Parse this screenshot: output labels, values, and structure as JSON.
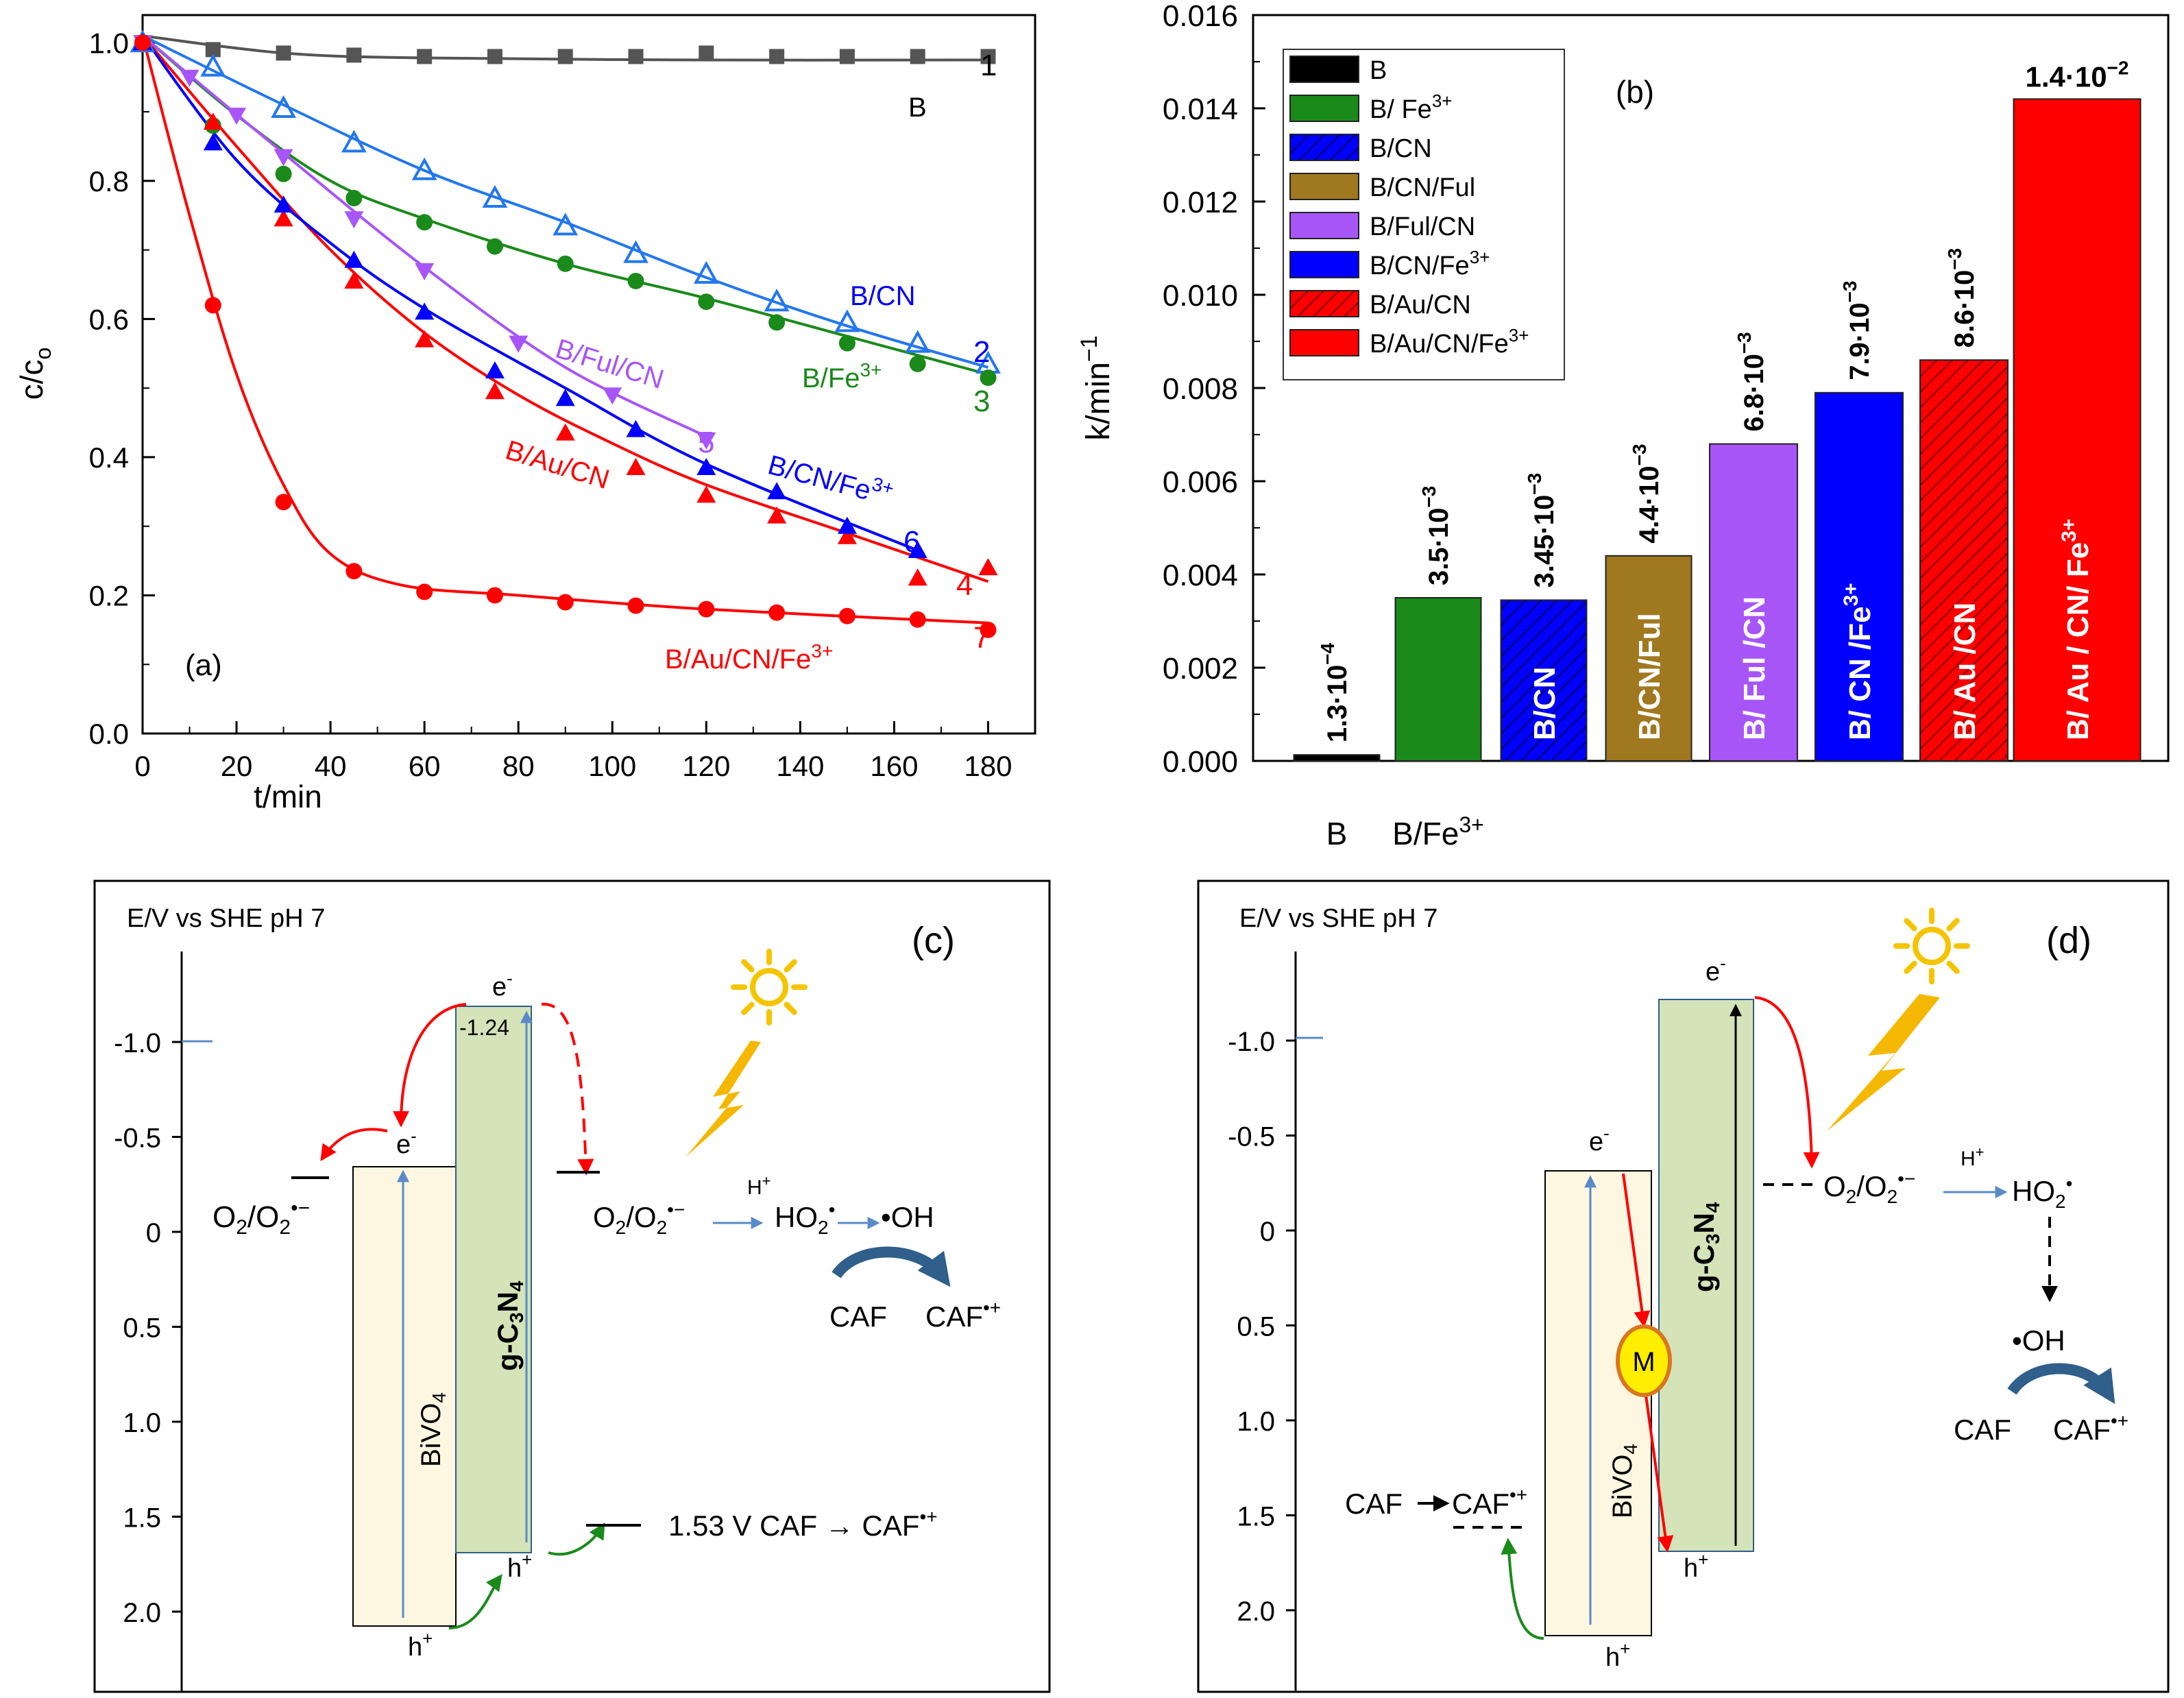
{
  "colors": {
    "black": "#000000",
    "gray": "#555555",
    "red": "#ff0000",
    "green": "#1a8a1a",
    "blue": "#0000ff",
    "lightblue": "#2277ee",
    "purple": "#a855f7",
    "brown": "#a07820",
    "bivo4_fill": "#fdf6e0",
    "gcn_fill": "#d4e3b8",
    "sun": "#f5c400",
    "bolt": "#f5b800",
    "m_fill": "#ffee00",
    "m_ring": "#d9761f",
    "arc": "#2f5f8a",
    "box_line": "#2f5f8a"
  },
  "chart_data": [
    {
      "id": "a",
      "type": "scatter",
      "title": "(a)",
      "xlabel": "t/min",
      "ylabel": "c/co",
      "xlim": [
        0,
        190
      ],
      "ylim": [
        0,
        1.04
      ],
      "xticks": [
        "0",
        "20",
        "40",
        "60",
        "80",
        "100",
        "120",
        "140",
        "160",
        "180"
      ],
      "yticks": [
        "0.0",
        "0.2",
        "0.4",
        "0.6",
        "0.8",
        "1.0"
      ],
      "series": [
        {
          "name": "B",
          "num": "1",
          "color": "#555555",
          "marker": "square",
          "x": [
            0,
            15,
            30,
            45,
            60,
            75,
            90,
            105,
            120,
            135,
            150,
            165,
            180
          ],
          "y": [
            1.0,
            0.99,
            0.985,
            0.982,
            0.98,
            0.98,
            0.98,
            0.98,
            0.985,
            0.98,
            0.98,
            0.98,
            0.98
          ],
          "fit": [
            [
              0,
              1.01
            ],
            [
              30,
              0.985
            ],
            [
              60,
              0.978
            ],
            [
              120,
              0.975
            ],
            [
              180,
              0.975
            ]
          ]
        },
        {
          "name": "B/CN",
          "num": "2",
          "color": "#2277ee",
          "marker": "open-triangle",
          "x": [
            0,
            15,
            30,
            45,
            60,
            75,
            90,
            105,
            120,
            135,
            150,
            165,
            180
          ],
          "y": [
            1.0,
            0.965,
            0.905,
            0.855,
            0.815,
            0.775,
            0.735,
            0.695,
            0.665,
            0.625,
            0.595,
            0.565,
            0.535
          ],
          "fit": [
            [
              0,
              1.01
            ],
            [
              30,
              0.91
            ],
            [
              60,
              0.815
            ],
            [
              90,
              0.74
            ],
            [
              120,
              0.66
            ],
            [
              150,
              0.59
            ],
            [
              180,
              0.53
            ]
          ]
        },
        {
          "name": "B/Fe3+",
          "num": "3",
          "color": "#1a8a1a",
          "marker": "circle",
          "x": [
            0,
            15,
            30,
            45,
            60,
            75,
            90,
            105,
            120,
            135,
            150,
            165,
            180
          ],
          "y": [
            1.0,
            0.88,
            0.81,
            0.775,
            0.74,
            0.705,
            0.68,
            0.655,
            0.625,
            0.595,
            0.565,
            0.535,
            0.515
          ],
          "fit": [
            [
              0,
              1.01
            ],
            [
              20,
              0.895
            ],
            [
              40,
              0.8
            ],
            [
              60,
              0.745
            ],
            [
              90,
              0.68
            ],
            [
              120,
              0.63
            ],
            [
              150,
              0.575
            ],
            [
              180,
              0.52
            ]
          ]
        },
        {
          "name": "B/Au/CN",
          "num": "4",
          "color": "#ff0000",
          "marker": "triangle",
          "x": [
            0,
            15,
            30,
            45,
            60,
            75,
            90,
            105,
            120,
            135,
            150,
            165,
            180
          ],
          "y": [
            1.0,
            0.885,
            0.745,
            0.655,
            0.57,
            0.495,
            0.435,
            0.385,
            0.345,
            0.315,
            0.285,
            0.225,
            0.24
          ],
          "fit": [
            [
              0,
              1.01
            ],
            [
              20,
              0.85
            ],
            [
              40,
              0.7
            ],
            [
              60,
              0.58
            ],
            [
              80,
              0.49
            ],
            [
              100,
              0.42
            ],
            [
              120,
              0.36
            ],
            [
              150,
              0.29
            ],
            [
              180,
              0.22
            ]
          ]
        },
        {
          "name": "B/Ful/CN",
          "num": "5",
          "color": "#a855f7",
          "marker": "down-triangle",
          "x": [
            0,
            10,
            20,
            30,
            45,
            60,
            80,
            100,
            120
          ],
          "y": [
            1.0,
            0.95,
            0.895,
            0.835,
            0.745,
            0.67,
            0.565,
            0.49,
            0.425
          ],
          "fit": [
            [
              0,
              1.01
            ],
            [
              30,
              0.84
            ],
            [
              60,
              0.675
            ],
            [
              90,
              0.53
            ],
            [
              120,
              0.43
            ]
          ]
        },
        {
          "name": "B/CN/Fe3+",
          "num": "6",
          "color": "#0000ff",
          "marker": "triangle",
          "x": [
            0,
            15,
            30,
            45,
            60,
            75,
            90,
            105,
            120,
            135,
            150,
            165
          ],
          "y": [
            1.0,
            0.855,
            0.765,
            0.685,
            0.61,
            0.525,
            0.485,
            0.44,
            0.385,
            0.35,
            0.3,
            0.265
          ],
          "fit": [
            [
              0,
              1.01
            ],
            [
              20,
              0.83
            ],
            [
              40,
              0.71
            ],
            [
              60,
              0.615
            ],
            [
              90,
              0.5
            ],
            [
              120,
              0.39
            ],
            [
              165,
              0.265
            ]
          ]
        },
        {
          "name": "B/Au/CN/Fe3+",
          "num": "7",
          "color": "#ff0000",
          "marker": "circle",
          "x": [
            0,
            15,
            30,
            45,
            60,
            75,
            90,
            105,
            120,
            135,
            150,
            165,
            180
          ],
          "y": [
            1.0,
            0.62,
            0.335,
            0.235,
            0.205,
            0.2,
            0.19,
            0.185,
            0.18,
            0.175,
            0.17,
            0.165,
            0.15
          ],
          "fit": [
            [
              0,
              1.01
            ],
            [
              10,
              0.75
            ],
            [
              20,
              0.52
            ],
            [
              30,
              0.36
            ],
            [
              40,
              0.26
            ],
            [
              55,
              0.215
            ],
            [
              80,
              0.2
            ],
            [
              120,
              0.18
            ],
            [
              180,
              0.16
            ]
          ]
        }
      ],
      "labels": {
        "B": "B",
        "BCN": "B/CN",
        "BFe": "B/Fe",
        "BFe_sup": "3+",
        "BFulCN": "B/Ful/CN",
        "BAuCN": "B/Au/CN",
        "BCNFe": "B/CN/Fe",
        "BCNFe_sup": "3+",
        "BAuCNFe": "B/Au/CN/Fe",
        "BAuCNFe_sup": "3+",
        "panel": "(a)"
      }
    },
    {
      "id": "b",
      "type": "bar",
      "title": "(b)",
      "ylabel": "k/min",
      "ylabel_sup": "−1",
      "ylim": [
        0,
        0.016
      ],
      "yticks": [
        "0.000",
        "0.002",
        "0.004",
        "0.006",
        "0.008",
        "0.010",
        "0.012",
        "0.014",
        "0.016"
      ],
      "xcat_labels": [
        {
          "text": "B",
          "sup": ""
        },
        {
          "text": "B/Fe",
          "sup": "3+"
        }
      ],
      "bars": [
        {
          "name": "B",
          "value": 0.00013,
          "top_label": "1.3·10",
          "top_exp": "−4",
          "in_label": "",
          "color": "#000000",
          "hatch": false
        },
        {
          "name": "B/ Fe3+",
          "value": 0.0035,
          "top_label": "3.5·10",
          "top_exp": "−3",
          "in_label": "",
          "color": "#1a8a1a",
          "hatch": false
        },
        {
          "name": "B/CN",
          "value": 0.00345,
          "top_label": "3.45·10",
          "top_exp": "−3",
          "in_label": "B/CN",
          "color": "#0000ff",
          "hatch": true
        },
        {
          "name": "B/CN/Ful",
          "value": 0.0044,
          "top_label": "4.4·10",
          "top_exp": "−3",
          "in_label": "B/CN/Ful",
          "color": "#a07820",
          "hatch": false
        },
        {
          "name": "B/Ful/CN",
          "value": 0.0068,
          "top_label": "6.8·10",
          "top_exp": "−3",
          "in_label": "B/ Ful /CN",
          "color": "#a855f7",
          "hatch": false
        },
        {
          "name": "B/CN/Fe3+",
          "value": 0.0079,
          "top_label": "7.9·10",
          "top_exp": "−3",
          "in_label": "B/ CN /Fe",
          "in_sup": "3+",
          "color": "#0000ff",
          "hatch": false
        },
        {
          "name": "B/Au/CN",
          "value": 0.0086,
          "top_label": "8.6·10",
          "top_exp": "−3",
          "in_label": "B/ Au /CN",
          "color": "#ff0000",
          "hatch": true
        },
        {
          "name": "B/Au/CN/Fe3+",
          "value": 0.0142,
          "top_label": "1.4·10",
          "top_exp": "−2",
          "in_label": "B/ Au / CN/ Fe",
          "in_sup": "3+",
          "color": "#ff0000",
          "hatch": false
        }
      ],
      "legend": [
        {
          "label": "B",
          "sup": "",
          "color": "#000000",
          "hatch": false
        },
        {
          "label": "B/ Fe",
          "sup": "3+",
          "color": "#1a8a1a",
          "hatch": false
        },
        {
          "label": "B/CN",
          "sup": "",
          "color": "#0000ff",
          "hatch": true
        },
        {
          "label": "B/CN/Ful",
          "sup": "",
          "color": "#a07820",
          "hatch": false
        },
        {
          "label": "B/Ful/CN",
          "sup": "",
          "color": "#a855f7",
          "hatch": false
        },
        {
          "label": "B/CN/Fe",
          "sup": "3+",
          "color": "#0000ff",
          "hatch": false
        },
        {
          "label": "B/Au/CN",
          "sup": "",
          "color": "#ff0000",
          "hatch": true
        },
        {
          "label": "B/Au/CN/Fe",
          "sup": "3+",
          "color": "#ff0000",
          "hatch": false
        }
      ]
    }
  ],
  "panel_c": {
    "title": "(c)",
    "axis_label": "E/V vs SHE  pH 7",
    "ticks": [
      "-1.0",
      "-0.5",
      "0",
      "0.5",
      "1.0",
      "1.5",
      "2.0"
    ],
    "bivo4": "BiVO",
    "gcn": "g-C",
    "e_minus": "e",
    "h_plus": "h",
    "cb_value": "-1.24",
    "o2_left": "O",
    "o2_right": "O",
    "h_plus_arrow": "H",
    "ho2": "HO",
    "oh": "•OH",
    "caf": "CAF",
    "caf_plus": "CAF",
    "caf_reaction": "1.53 V CAF → CAF"
  },
  "panel_d": {
    "title": "(d)",
    "axis_label": "E/V vs SHE  pH 7",
    "ticks": [
      "-1.0",
      "-0.5",
      "0",
      "0.5",
      "1.0",
      "1.5",
      "2.0"
    ],
    "bivo4": "BiVO",
    "gcn": "g-C",
    "e_minus": "e",
    "h_plus": "h",
    "m": "M",
    "o2": "O",
    "h_plus_arrow": "H",
    "ho2": "HO",
    "oh": "•OH",
    "caf": "CAF",
    "caf_plus": "CAF",
    "caf_left": "CAF",
    "caf_left_plus": "CAF"
  }
}
